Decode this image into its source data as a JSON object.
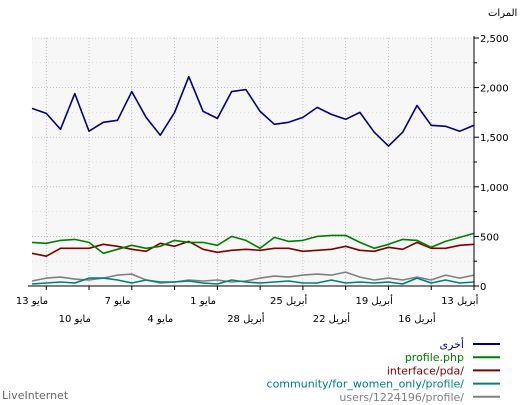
{
  "chart_data": {
    "type": "line",
    "title": "المرات",
    "footer": "LiveInternet",
    "ylim": [
      0,
      2500
    ],
    "y_ticks": [
      0,
      500,
      1000,
      1500,
      2000,
      2500
    ],
    "y_tick_labels": [
      "0",
      "500",
      "1,000",
      "1,500",
      "2,000",
      "2,500"
    ],
    "grid": true,
    "legend_position": "bottom-right",
    "x_tick_labels_upper": [
      "13 مايو",
      "7 مايو",
      "1 مايو",
      "25 أبريل",
      "19 أبريل",
      "13 أبريل"
    ],
    "x_tick_labels_lower": [
      "10 مايو",
      "4 مايو",
      "28 أبريل",
      "22 أبريل",
      "16 أبريل"
    ],
    "series": [
      {
        "name": "أخرى",
        "color": "#000080",
        "values": [
          1620,
          1560,
          1610,
          1620,
          1820,
          1550,
          1410,
          1550,
          1750,
          1680,
          1730,
          1800,
          1700,
          1650,
          1630,
          1760,
          1980,
          1960,
          1690,
          1760,
          2110,
          1750,
          1520,
          1700,
          1960,
          1670,
          1650,
          1560,
          1940,
          1580,
          1740,
          1790
        ]
      },
      {
        "name": "profile.php",
        "color": "#008000",
        "values": [
          530,
          490,
          450,
          390,
          460,
          470,
          420,
          380,
          440,
          510,
          510,
          500,
          460,
          450,
          490,
          380,
          460,
          500,
          410,
          440,
          440,
          460,
          400,
          380,
          410,
          370,
          330,
          440,
          470,
          460,
          430,
          440
        ]
      },
      {
        "name": "interface/pda/",
        "color": "#800000",
        "values": [
          420,
          410,
          380,
          380,
          440,
          370,
          390,
          350,
          360,
          400,
          370,
          360,
          350,
          380,
          380,
          360,
          370,
          360,
          340,
          370,
          450,
          400,
          430,
          350,
          370,
          400,
          420,
          380,
          380,
          380,
          300,
          330
        ]
      },
      {
        "name": "community/for_women_only/profile/",
        "color": "#008080",
        "values": [
          40,
          30,
          60,
          30,
          80,
          20,
          40,
          30,
          40,
          30,
          60,
          30,
          30,
          50,
          40,
          30,
          40,
          60,
          20,
          30,
          50,
          40,
          40,
          60,
          30,
          60,
          80,
          80,
          30,
          40,
          30,
          20
        ]
      },
      {
        "name": "users/1224196/profile/",
        "color": "#808080",
        "values": [
          110,
          80,
          110,
          60,
          90,
          60,
          80,
          60,
          90,
          140,
          110,
          120,
          110,
          90,
          100,
          80,
          50,
          40,
          60,
          50,
          60,
          40,
          30,
          60,
          120,
          110,
          80,
          60,
          70,
          90,
          80,
          50
        ]
      }
    ]
  }
}
